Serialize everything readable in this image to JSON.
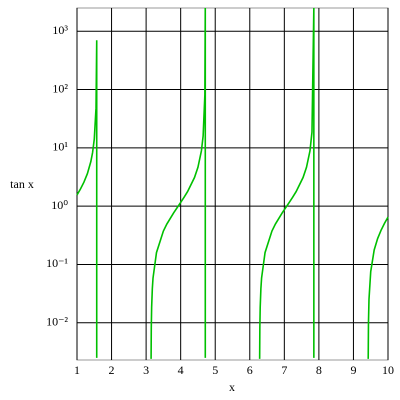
{
  "chart_data": {
    "type": "line",
    "xlabel": "x",
    "ylabel": "tan x",
    "color": "#00c000",
    "log_y": true,
    "grid": true,
    "xlim": [
      1,
      10
    ],
    "ylim": [
      0.0023,
      2500
    ],
    "xticks": [
      1,
      2,
      3,
      4,
      5,
      6,
      7,
      8,
      9,
      10
    ],
    "yticks": [
      {
        "value": 0.01,
        "label": "10⁻²"
      },
      {
        "value": 0.1,
        "label": "10⁻¹"
      },
      {
        "value": 1,
        "label": "10⁰"
      },
      {
        "value": 10,
        "label": "10¹"
      },
      {
        "value": 100,
        "label": "10²"
      },
      {
        "value": 1000,
        "label": "10³"
      }
    ],
    "x": [
      1,
      1.1,
      1.2,
      1.3,
      1.4,
      1.45,
      1.5,
      1.55,
      1.5707,
      1.5708,
      2,
      3.144,
      3.15,
      3.16,
      3.18,
      3.2,
      3.3,
      3.5,
      3.6,
      3.8,
      4.0,
      4.1,
      4.2,
      4.4,
      4.5,
      4.6,
      4.65,
      4.7,
      4.7124,
      4.7125,
      5,
      6.2856,
      6.2916,
      6.3016,
      6.3216,
      6.3416,
      6.4416,
      6.6416,
      6.7416,
      6.9416,
      7.1416,
      7.2416,
      7.3416,
      7.5416,
      7.6416,
      7.7416,
      7.8,
      7.854,
      7.8541,
      8.5,
      9.4272,
      9.4348,
      9.45,
      9.5,
      9.6,
      9.7,
      9.8,
      9.9,
      10
    ],
    "values": [
      1.557,
      1.965,
      2.572,
      3.602,
      5.798,
      8.238,
      14.1,
      48.08,
      700,
      0.0025,
      null,
      0.0024,
      0.0084,
      0.0184,
      0.0384,
      0.0585,
      0.1597,
      0.3746,
      0.4935,
      0.7736,
      1.158,
      1.424,
      1.778,
      3.096,
      4.637,
      8.86,
      16.0,
      80.7,
      2500,
      0.0025,
      null,
      0.0024,
      0.0084,
      0.0184,
      0.0384,
      0.0585,
      0.1597,
      0.3746,
      0.4935,
      0.7736,
      1.158,
      1.424,
      1.778,
      3.096,
      4.637,
      8.86,
      18.6,
      2500,
      0.0025,
      null,
      0.0024,
      0.01,
      0.0253,
      0.0755,
      0.1772,
      0.2786,
      0.3872,
      0.5085,
      0.6484
    ]
  }
}
